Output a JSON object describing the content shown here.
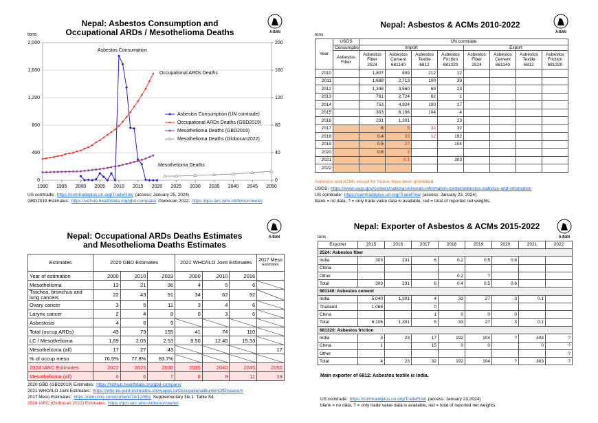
{
  "logo": "A-BAN",
  "chart_data": {
    "type": "line",
    "title": "Nepal: Asbestos Consumption and Occupational ARDs / Mesothelioma Deaths",
    "ylabel": "tons",
    "xlim": [
      1990,
      2050
    ],
    "xticks": [
      1990,
      1995,
      2000,
      2005,
      2010,
      2015,
      2020,
      2025,
      2030,
      2035,
      2040,
      2045,
      2050
    ],
    "ylim": [
      0,
      2000
    ],
    "yticks": [
      0,
      400,
      800,
      {
        "value": 1200,
        "label": "1,200"
      },
      {
        "value": 1600,
        "label": "1,600"
      },
      {
        "value": 2000,
        "label": "2,000"
      }
    ],
    "y2lim": [
      0,
      200
    ],
    "y2ticks": [
      0,
      40,
      80,
      120,
      160,
      200
    ],
    "grid": true,
    "legend": "right",
    "annotations": [
      "Asbestos Consumption",
      "Occupational ARDs Deaths",
      "Mesothelioma Deaths"
    ],
    "series": [
      {
        "name": "Asbestos Consumption (UN comtrade)",
        "color": "#2020d0",
        "marker": "diamond",
        "x": [
          2000,
          2001,
          2002,
          2003,
          2004,
          2005,
          2006,
          2007,
          2008,
          2009,
          2010,
          2011,
          2012,
          2013,
          2014,
          2015,
          2016,
          2017,
          2018,
          2019,
          2020
        ],
        "values": [
          60,
          0,
          5,
          0,
          10,
          100,
          50,
          0,
          100,
          0,
          1807,
          1688,
          1348,
          761,
          753,
          303,
          231,
          6,
          0.4,
          0.5,
          0.6
        ]
      },
      {
        "name": "Occupational ARDs Deaths (GBD2019)",
        "color": "#ff2a2a",
        "marker": "circle",
        "axis": "y2",
        "x": [
          1990,
          1991,
          1992,
          1993,
          1994,
          1995,
          1996,
          1997,
          1998,
          1999,
          2000,
          2001,
          2002,
          2003,
          2004,
          2005,
          2006,
          2007,
          2008,
          2009,
          2010,
          2011,
          2012,
          2013,
          2014,
          2015,
          2016,
          2017,
          2018,
          2019
        ],
        "values": [
          31,
          32,
          33,
          34,
          35,
          36,
          38,
          39,
          40,
          42,
          43,
          46,
          48,
          51,
          55,
          58,
          62,
          66,
          70,
          74,
          79,
          85,
          92,
          99,
          107,
          115,
          124,
          133,
          144,
          155
        ]
      },
      {
        "name": "Mesothelioma Deaths (GBD2019)",
        "color": "#8b3a8b",
        "marker": "asterisk",
        "axis": "y2",
        "x": [
          1990,
          1991,
          1992,
          1993,
          1994,
          1995,
          1996,
          1997,
          1998,
          1999,
          2000,
          2001,
          2002,
          2003,
          2004,
          2005,
          2006,
          2007,
          2008,
          2009,
          2010,
          2011,
          2012,
          2013,
          2014,
          2015,
          2016,
          2017,
          2018,
          2019
        ],
        "values": [
          11.5,
          11.6,
          11.8,
          11.9,
          12.1,
          12.2,
          12.4,
          12.5,
          12.7,
          12.8,
          13,
          13.6,
          14.2,
          14.9,
          15.5,
          16.2,
          17,
          17.9,
          18.9,
          19.9,
          21,
          22.3,
          23.6,
          25,
          26.5,
          28,
          29.6,
          31.6,
          33.7,
          36
        ]
      },
      {
        "name": "Mesothelioma Deaths (Globocan2022)",
        "color": "#999999",
        "marker": "triangle",
        "axis": "y2",
        "x": [
          2022,
          2025,
          2030,
          2035,
          2040,
          2045,
          2050
        ],
        "values": [
          6,
          6,
          7,
          8,
          9,
          11,
          13
        ]
      }
    ],
    "sources": [
      [
        {
          "text": "US comtrade:"
        },
        {
          "text": "https://comtradeplus.un.org/TradeFlow",
          "link": true
        },
        {
          "text": "(access: January 25, 2024)"
        }
      ],
      [
        {
          "text": "GBD2019 Estimates:"
        },
        {
          "text": "https://vizhub.healthdata.org/gbd-compare/",
          "link": true
        },
        {
          "text": "Globocan 2022:"
        },
        {
          "text": "https://gco.iarc.who.int/tomorrow/en",
          "link": true
        }
      ]
    ]
  },
  "acm_table": {
    "title": "Nepal: Asbestos & ACMs 2010-2022",
    "unit": "tons",
    "header": {
      "year": "Year",
      "usgs": "USGS",
      "un": "UN comtrade",
      "consumption": "Consumption",
      "import": "Import",
      "export": "Export"
    },
    "columns": [
      {
        "name": "Asbestos Fiber"
      },
      {
        "name": "Asbestos Fiber",
        "code": "2524"
      },
      {
        "name": "Asbestos Cement",
        "code": "681140"
      },
      {
        "name": "Asbestos Textile",
        "code": "6812"
      },
      {
        "name": "Asbestos Friction",
        "code": "681320"
      },
      {
        "name": "Asbestos Fiber",
        "code": "2524"
      },
      {
        "name": "Asbestos Cement",
        "code": "681140"
      },
      {
        "name": "Asbestos Textile",
        "code": "6812"
      },
      {
        "name": "Asbestos Friction",
        "code": "681320"
      }
    ],
    "rows": [
      {
        "year": 2010,
        "cells": [
          null,
          "1,807",
          "809",
          "212",
          "12",
          null,
          null,
          null,
          null
        ]
      },
      {
        "year": 2011,
        "cells": [
          null,
          "1,688",
          "2,713",
          "100",
          "39",
          null,
          null,
          null,
          null
        ]
      },
      {
        "year": 2012,
        "cells": [
          null,
          "1,348",
          "3,560",
          "69",
          "23",
          null,
          null,
          null,
          null
        ]
      },
      {
        "year": 2013,
        "cells": [
          null,
          "761",
          "2,724",
          "62",
          "1",
          null,
          null,
          null,
          null
        ]
      },
      {
        "year": 2014,
        "cells": [
          null,
          "753",
          "4,924",
          "100",
          "17",
          null,
          null,
          null,
          null
        ]
      },
      {
        "year": 2015,
        "cells": [
          null,
          "303",
          "6,106",
          "104",
          "4",
          null,
          null,
          null,
          null
        ]
      },
      {
        "year": 2016,
        "cells": [
          null,
          "231",
          "1,301",
          null,
          "23",
          null,
          null,
          null,
          null
        ]
      },
      {
        "year": 2017,
        "shaded": true,
        "cells": [
          null,
          "6",
          "5",
          "32",
          "32",
          null,
          null,
          null,
          null
        ]
      },
      {
        "year": 2018,
        "shaded": true,
        "cells": [
          null,
          "0.4",
          "33",
          "12",
          "192",
          null,
          null,
          null,
          null
        ]
      },
      {
        "year": 2019,
        "shaded": true,
        "cells": [
          null,
          "0.5",
          "27",
          null,
          "104",
          null,
          null,
          null,
          null
        ]
      },
      {
        "year": 2020,
        "shaded": true,
        "cells": [
          null,
          "0.6",
          "3",
          null,
          null,
          null,
          null,
          null,
          null
        ]
      },
      {
        "year": 2021,
        "shaded": true,
        "cells": [
          null,
          null,
          "0.1",
          null,
          "303",
          null,
          null,
          null,
          null
        ]
      },
      {
        "year": 2022,
        "shaded": true,
        "cells": [
          null,
          null,
          null,
          null,
          null,
          null,
          null,
          null,
          null
        ]
      }
    ],
    "prohibited_note": "Asbestos and ACMs except for friction have been prohibited.",
    "sources": [
      [
        {
          "text": "USGS:"
        },
        {
          "text": "https://www.usgs.gov/centers/national-minerals-information-center/asbestos-statistics-and-information",
          "link": true
        }
      ],
      [
        {
          "text": "US comtrade:"
        },
        {
          "text": "https://comtradeplus.un.org/TradeFlow",
          "link": true
        },
        {
          "text": "(access: January 23, 2024)"
        }
      ],
      [
        {
          "text": "blank = no data, ? = only trade value data is available, red = total of reported net weights."
        }
      ]
    ]
  },
  "ard_table": {
    "title": "Nepal: Occupational ARDs Deaths Estimates and Mesothelioma Deaths Estimates",
    "header": {
      "estimates": "Estimates",
      "gbd": "2020 GBD Estimates",
      "who": "2021 WHO/ILO Joint Estimates",
      "meso": "2017 Meso",
      "meso_sub": "Estimates"
    },
    "year_row": {
      "label": "Year of estimation",
      "values": [
        "2000",
        "2010",
        "2019",
        "2000",
        "2010",
        "2016"
      ]
    },
    "rows": [
      {
        "label": "Mesothelioma",
        "values": [
          "13",
          "21",
          "36",
          "4",
          "5",
          "6",
          null
        ]
      },
      {
        "label": "Trachea, bronchus and lung cancers",
        "values": [
          "22",
          "43",
          "91",
          "34",
          "62",
          "92",
          null
        ]
      },
      {
        "label": "Ovary cancer",
        "values": [
          "3",
          "5",
          "11",
          "3",
          "4",
          "6",
          null
        ]
      },
      {
        "label": "Larynx cancer",
        "values": [
          "2",
          "4",
          "8",
          "0",
          "3",
          "6",
          null
        ]
      },
      {
        "label": "Asbestosis",
        "values": [
          "4",
          "6",
          "9",
          null,
          null,
          null,
          null
        ]
      },
      {
        "label": "Total (occup ARDs)",
        "values": [
          "43",
          "79",
          "155",
          "41",
          "74",
          "110",
          null
        ]
      },
      {
        "label": "LC / Mesothelioma",
        "values": [
          "1.69",
          "2.05",
          "2.53",
          "8.50",
          "12.40",
          "15.33",
          null
        ]
      },
      {
        "label": "Mesothelioma (all)",
        "values": [
          "17",
          "27",
          "43",
          null,
          null,
          null,
          "17"
        ]
      },
      {
        "label": "% of occup meso",
        "values": [
          "76.5%",
          "77.8%",
          "83.7%",
          null,
          null,
          null,
          null
        ]
      }
    ],
    "iarc_header": {
      "label": "2024 IARC Estimates",
      "values": [
        "2022",
        "2025",
        "2030",
        "2035",
        "2040",
        "2045",
        "2050"
      ]
    },
    "iarc_row": {
      "label": "Mesothelioma (all)",
      "values": [
        "6",
        "6",
        "7",
        "8",
        "9",
        "11",
        "13"
      ]
    },
    "sources": [
      [
        {
          "text": "2020 GBD (GBD2019) Estimates:"
        },
        {
          "text": "https://vizhub.healthdata.org/gbd-compare/",
          "link": true
        }
      ],
      [
        {
          "text": "2021 WHO/ILO Joint Estimates:"
        },
        {
          "text": "https://who-ilo-joint-estimates.shinyapps.io/OccupationalBurdenOfDisease/#",
          "link": true
        }
      ],
      [
        {
          "text": "2017 Meso Estimates:"
        },
        {
          "text": "https://oem.bmj.com/content/74/12/851",
          "link": true
        },
        {
          "text": "Supplementary file 1: Table S4"
        }
      ],
      [
        {
          "text": "2024 IARC (Globocan 2022) Estimates:",
          "red": true
        },
        {
          "text": "https://gco.iarc.who.int/tomorrow/en",
          "link": true
        }
      ]
    ]
  },
  "exporter_table": {
    "title": "Nepal: Exporter of Asbestos & ACMs 2015-2022",
    "unit": "tons",
    "columns": [
      "Exporter",
      "2015",
      "2016",
      "2017",
      "2018",
      "2019",
      "2020",
      "2021",
      "2022"
    ],
    "sections": [
      {
        "name": "2524: Asbestos fiber",
        "rows": [
          {
            "label": "India",
            "values": [
              "303",
              "231",
              "6",
              "0.2",
              "0.5",
              "0.6",
              null,
              null
            ]
          },
          {
            "label": "China",
            "values": [
              null,
              null,
              null,
              null,
              null,
              null,
              null,
              null
            ]
          },
          {
            "label": "Other",
            "values": [
              null,
              null,
              null,
              "0.2",
              "?",
              null,
              null,
              null
            ]
          },
          {
            "label": "Total",
            "values": [
              "303",
              "231",
              "6",
              "0.4",
              "0.5",
              "0.6",
              null,
              null
            ]
          }
        ]
      },
      {
        "name": "681140: Asbestos cement",
        "rows": [
          {
            "label": "India",
            "values": [
              "5,040",
              "1,301",
              "4",
              "33",
              "27",
              "3",
              "0.1",
              null
            ]
          },
          {
            "label": "Thailand",
            "values": [
              "1,066",
              null,
              "0",
              null,
              null,
              null,
              null,
              null
            ]
          },
          {
            "label": "China",
            "values": [
              null,
              null,
              "1",
              "0",
              "0",
              "0",
              null,
              null
            ]
          },
          {
            "label": "Total",
            "values": [
              "6,106",
              "1,301",
              "5",
              "33",
              "27",
              "3",
              "0.1",
              null
            ]
          }
        ]
      },
      {
        "name": "681320: Asbestos friction",
        "rows": [
          {
            "label": "India",
            "values": [
              "3",
              "23",
              "17",
              "192",
              "104",
              "?",
              "303",
              "?"
            ]
          },
          {
            "label": "China",
            "values": [
              "1",
              null,
              "15",
              "0",
              "0",
              null,
              "0",
              "?"
            ]
          },
          {
            "label": "Other",
            "values": [
              null,
              null,
              null,
              null,
              null,
              null,
              null,
              "?"
            ]
          },
          {
            "label": "Total",
            "values": [
              "4",
              "23",
              "32",
              "192",
              "104",
              "?",
              "303",
              "?"
            ]
          }
        ]
      }
    ],
    "main_exporter": "Main exporter of 6812: Asbestos textile is India.",
    "sources": [
      [
        {
          "text": "US comtrade:"
        },
        {
          "text": "https://comtradeplus.un.org/TradeFlow",
          "link": true
        },
        {
          "text": "(access: January 23,2024)"
        }
      ],
      [
        {
          "text": "blank = no data, ? = only trade value data is available, red = total of reported net weights."
        }
      ]
    ]
  }
}
